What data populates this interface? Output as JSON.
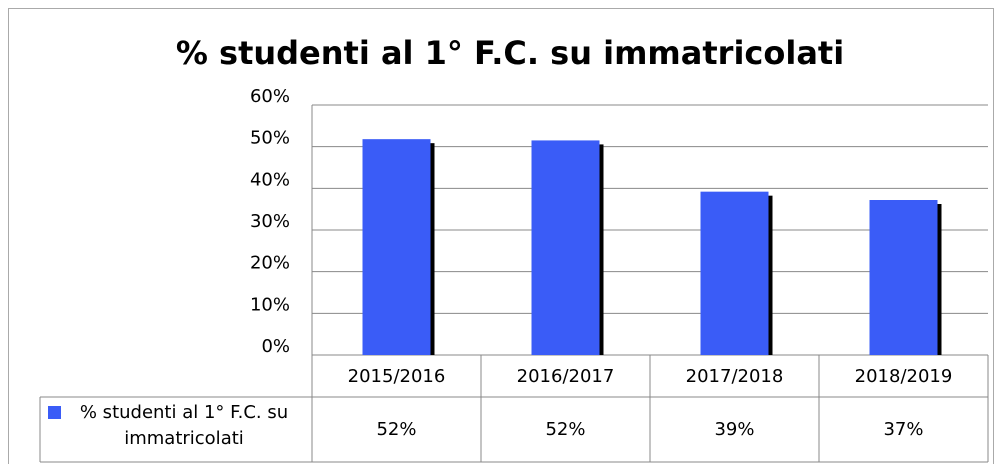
{
  "chart_data": {
    "type": "bar",
    "title": "% studenti al 1° F.C. su immatricolati",
    "categories": [
      "2015/2016",
      "2016/2017",
      "2017/2018",
      "2018/2019"
    ],
    "series": [
      {
        "name": "% studenti al 1° F.C. su immatricolati",
        "color": "#3a5cf7",
        "values": [
          51.8,
          51.5,
          39.2,
          37.2
        ],
        "value_labels": [
          "52%",
          "52%",
          "39%",
          "37%"
        ]
      }
    ],
    "ylim": [
      0,
      60
    ],
    "yticks": [
      {
        "value": 0,
        "label": "0%"
      },
      {
        "value": 10,
        "label": "10%"
      },
      {
        "value": 20,
        "label": "20%"
      },
      {
        "value": 30,
        "label": "30%"
      },
      {
        "value": 40,
        "label": "40%"
      },
      {
        "value": 50,
        "label": "50%"
      },
      {
        "value": 60,
        "label": "60%"
      }
    ],
    "grid": true,
    "legend": "bottom-left"
  }
}
